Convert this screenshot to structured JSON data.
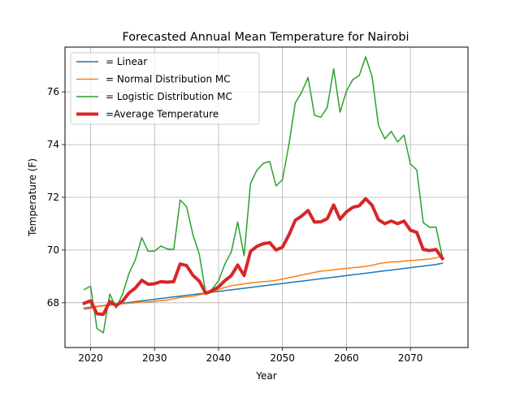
{
  "chart_data": {
    "type": "line",
    "title": "Forecasted Annual Mean Temperature for Nairobi",
    "xlabel": "Year",
    "ylabel": "Temperature (F)",
    "xlim": [
      2016,
      2079
    ],
    "ylim": [
      66.3,
      77.7
    ],
    "xticks": [
      2020,
      2030,
      2040,
      2050,
      2060,
      2070
    ],
    "yticks": [
      68,
      70,
      72,
      74,
      76
    ],
    "grid": true,
    "legend_position": "top-left",
    "x": [
      2019,
      2020,
      2021,
      2022,
      2023,
      2024,
      2025,
      2026,
      2027,
      2028,
      2029,
      2030,
      2031,
      2032,
      2033,
      2034,
      2035,
      2036,
      2037,
      2038,
      2039,
      2040,
      2041,
      2042,
      2043,
      2044,
      2045,
      2046,
      2047,
      2048,
      2049,
      2050,
      2051,
      2052,
      2053,
      2054,
      2055,
      2056,
      2057,
      2058,
      2059,
      2060,
      2061,
      2062,
      2063,
      2064,
      2065,
      2066,
      2067,
      2068,
      2069,
      2070,
      2071,
      2072,
      2073,
      2074,
      2075
    ],
    "series": [
      {
        "name": " = Linear",
        "color": "#1f77b4",
        "width": 1.5,
        "values": [
          67.8,
          67.83,
          67.86,
          67.89,
          67.92,
          67.95,
          67.98,
          68.01,
          68.04,
          68.07,
          68.1,
          68.13,
          68.16,
          68.19,
          68.22,
          68.25,
          68.28,
          68.31,
          68.34,
          68.37,
          68.4,
          68.43,
          68.46,
          68.49,
          68.52,
          68.55,
          68.58,
          68.61,
          68.64,
          68.67,
          68.7,
          68.73,
          68.76,
          68.79,
          68.82,
          68.85,
          68.88,
          68.91,
          68.94,
          68.97,
          69.0,
          69.03,
          69.06,
          69.09,
          69.12,
          69.15,
          69.18,
          69.21,
          69.24,
          69.27,
          69.3,
          69.33,
          69.36,
          69.39,
          69.42,
          69.45,
          69.5
        ]
      },
      {
        "name": " = Normal Distribution MC",
        "color": "#ff7f0e",
        "width": 1.5,
        "values": [
          67.75,
          67.78,
          67.85,
          67.88,
          67.9,
          67.93,
          67.96,
          67.98,
          68.0,
          68.02,
          68.03,
          68.05,
          68.08,
          68.1,
          68.15,
          68.2,
          68.22,
          68.25,
          68.3,
          68.35,
          68.4,
          68.5,
          68.58,
          68.65,
          68.68,
          68.72,
          68.75,
          68.78,
          68.8,
          68.82,
          68.85,
          68.9,
          68.95,
          69.0,
          69.05,
          69.1,
          69.15,
          69.2,
          69.22,
          69.25,
          69.28,
          69.3,
          69.33,
          69.35,
          69.38,
          69.42,
          69.48,
          69.52,
          69.55,
          69.55,
          69.58,
          69.6,
          69.62,
          69.64,
          69.66,
          69.7,
          69.78
        ]
      },
      {
        "name": " = Logistic Distribution MC",
        "color": "#2ca02c",
        "width": 1.5,
        "values": [
          68.5,
          68.63,
          67.02,
          66.86,
          68.33,
          67.8,
          68.33,
          69.11,
          69.63,
          70.47,
          69.95,
          69.96,
          70.15,
          70.04,
          70.02,
          71.9,
          71.65,
          70.58,
          69.84,
          68.35,
          68.52,
          68.83,
          69.47,
          69.93,
          71.06,
          69.78,
          72.52,
          73.03,
          73.29,
          73.36,
          72.43,
          72.67,
          74.0,
          75.58,
          75.99,
          76.55,
          75.11,
          75.04,
          75.41,
          76.88,
          75.23,
          76.03,
          76.47,
          76.62,
          77.33,
          76.59,
          74.73,
          74.22,
          74.5,
          74.1,
          74.36,
          73.26,
          73.04,
          71.04,
          70.86,
          70.87,
          69.73
        ]
      },
      {
        "name": "=Average Temperature",
        "color": "#d62728",
        "width": 4,
        "values": [
          67.98,
          68.07,
          67.58,
          67.56,
          68.05,
          67.89,
          68.06,
          68.37,
          68.56,
          68.85,
          68.7,
          68.72,
          68.8,
          68.78,
          68.8,
          69.47,
          69.41,
          69.04,
          68.82,
          68.36,
          68.45,
          68.6,
          68.84,
          69.03,
          69.43,
          69.03,
          69.95,
          70.14,
          70.24,
          70.28,
          70.0,
          70.11,
          70.57,
          71.13,
          71.29,
          71.5,
          71.06,
          71.07,
          71.19,
          71.71,
          71.17,
          71.45,
          71.62,
          71.68,
          71.95,
          71.7,
          71.15,
          71.0,
          71.1,
          71.0,
          71.1,
          70.75,
          70.67,
          70.02,
          69.98,
          70.02,
          69.68
        ]
      }
    ]
  }
}
